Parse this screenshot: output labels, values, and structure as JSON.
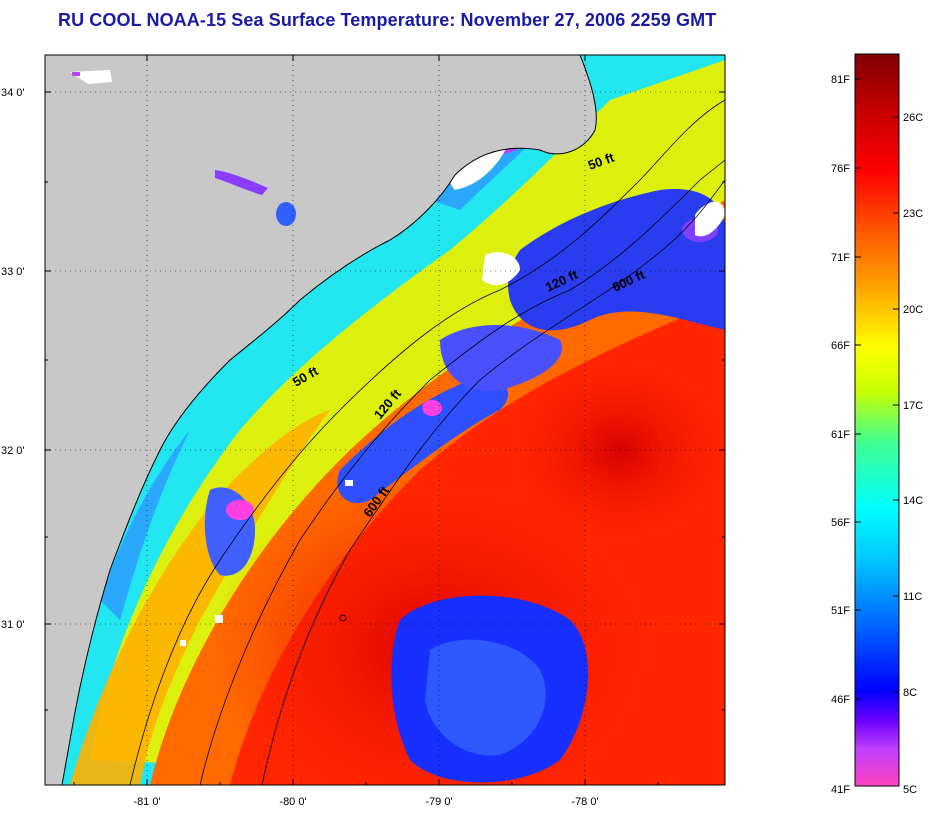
{
  "title": "RU COOL  NOAA-15  Sea Surface Temperature:  November 27, 2006 2259 GMT",
  "map": {
    "lat_ticks": [
      "34 0'",
      "33 0'",
      "32 0'",
      "31 0'"
    ],
    "lon_ticks": [
      "-81 0'",
      "-80 0'",
      "-79 0'",
      "-78 0'"
    ],
    "contours": [
      {
        "label": "50 ft",
        "rotation": -20
      },
      {
        "label": "120 ft",
        "rotation": -25
      },
      {
        "label": "600 ft",
        "rotation": -25
      },
      {
        "label": "50 ft",
        "rotation": -30
      },
      {
        "label": "120 ft",
        "rotation": -50
      },
      {
        "label": "600 ft",
        "rotation": -55
      }
    ]
  },
  "colorbar": {
    "fahrenheit_labels": [
      "81F",
      "76F",
      "71F",
      "66F",
      "61F",
      "56F",
      "51F",
      "46F",
      "41F"
    ],
    "celsius_labels": [
      "26C",
      "23C",
      "20C",
      "17C",
      "14C",
      "11C",
      "8C",
      "5C"
    ],
    "colors": [
      "#ff40c0",
      "#c040ff",
      "#6a00ff",
      "#0000ff",
      "#0066ff",
      "#00c8ff",
      "#00ffff",
      "#40ff90",
      "#c8ff00",
      "#ffff00",
      "#ffa500",
      "#ff5500",
      "#ff0000",
      "#c00000",
      "#800000"
    ]
  },
  "colors": {
    "title": "#1a1aa8",
    "land": "#c8c8c8",
    "cloud": "#ffffff"
  }
}
